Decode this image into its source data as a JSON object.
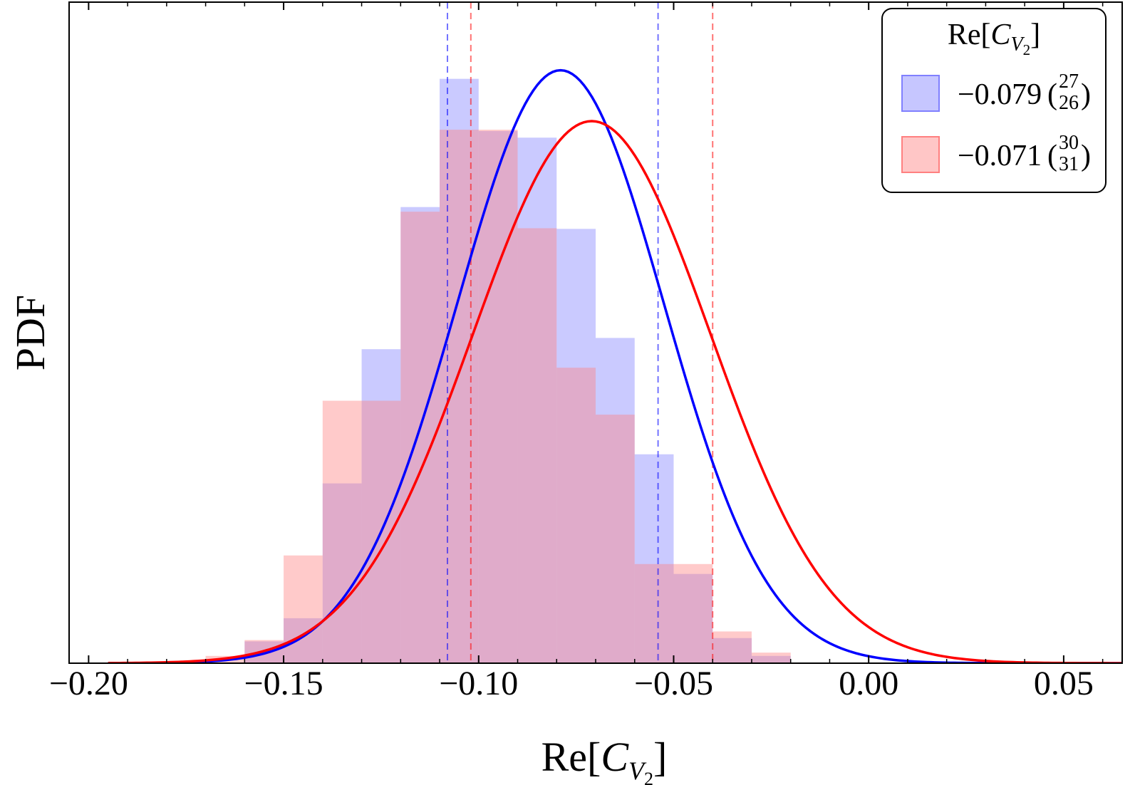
{
  "chart_data": {
    "type": "histogram",
    "xlabel": {
      "prefix": "Re[",
      "symbol": "C",
      "subscript_symbol": "V",
      "subscript_index": "2",
      "suffix": "]"
    },
    "ylabel": "PDF",
    "xlim": [
      -0.205,
      0.065
    ],
    "ylim": [
      0,
      1.0
    ],
    "xticks": [
      -0.2,
      -0.15,
      -0.1,
      -0.05,
      0.0,
      0.05
    ],
    "xtick_labels": [
      "−0.20",
      "−0.15",
      "−0.10",
      "−0.05",
      "0.00",
      "0.05"
    ],
    "minor_tick_step": 0.01,
    "bin_width": 0.01,
    "legend": {
      "title": {
        "prefix": "Re[",
        "symbol": "C",
        "subscript_symbol": "V",
        "subscript_index": "2",
        "suffix": "]"
      },
      "position": "top-right"
    },
    "series": [
      {
        "name": "blue",
        "fill_color": "#8080ff",
        "line_color": "#0000ff",
        "legend_value": "−0.079",
        "legend_upper": "27",
        "legend_lower": "26",
        "curve": {
          "mean": -0.079,
          "sigma": 0.0265,
          "peak": 0.897
        },
        "interval": [
          -0.108,
          -0.054
        ],
        "bins_start": -0.16,
        "bin_heights": [
          0.033,
          0.068,
          0.272,
          0.475,
          0.69,
          0.884,
          0.805,
          0.795,
          0.657,
          0.492,
          0.316,
          0.135,
          0.038,
          0.011
        ]
      },
      {
        "name": "red",
        "fill_color": "#ff8080",
        "line_color": "#ff0000",
        "legend_value": "−0.071",
        "legend_upper": "30",
        "legend_lower": "31",
        "curve": {
          "mean": -0.071,
          "sigma": 0.0305,
          "peak": 0.82
        },
        "interval": [
          -0.102,
          -0.04
        ],
        "bins_start": -0.17,
        "bin_heights": [
          0.011,
          0.035,
          0.163,
          0.397,
          0.397,
          0.683,
          0.807,
          0.807,
          0.658,
          0.447,
          0.376,
          0.15,
          0.15,
          0.048,
          0.016
        ]
      }
    ]
  }
}
